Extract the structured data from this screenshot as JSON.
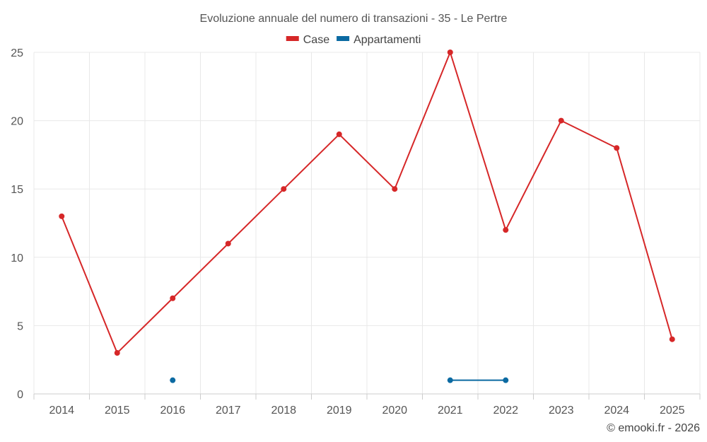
{
  "chart_data": {
    "type": "line",
    "title": "Evoluzione annuale del numero di transazioni - 35 - Le Pertre",
    "categories": [
      "2014",
      "2015",
      "2016",
      "2017",
      "2018",
      "2019",
      "2020",
      "2021",
      "2022",
      "2023",
      "2024",
      "2025"
    ],
    "series": [
      {
        "name": "Case",
        "color": "#d62728",
        "values": [
          13,
          3,
          7,
          11,
          15,
          19,
          15,
          25,
          12,
          20,
          18,
          4
        ]
      },
      {
        "name": "Appartamenti",
        "color": "#0b6aa2",
        "values": [
          null,
          null,
          1,
          null,
          null,
          null,
          null,
          1,
          1,
          null,
          null,
          null
        ]
      }
    ],
    "ylim": [
      0,
      25
    ],
    "yticks": [
      0,
      5,
      10,
      15,
      20,
      25
    ],
    "grid": true,
    "legend": "top-center",
    "xlabel": "",
    "ylabel": ""
  },
  "credit": "© emooki.fr - 2026"
}
